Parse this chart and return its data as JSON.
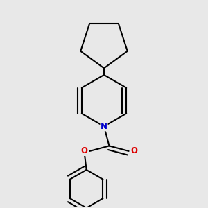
{
  "background_color": "#e8e8e8",
  "bond_color": "#000000",
  "N_color": "#0000cc",
  "O_color": "#dd0000",
  "line_width": 1.5,
  "dbo": 0.018,
  "figsize": [
    3.0,
    3.0
  ],
  "dpi": 100,
  "xlim": [
    0.15,
    0.85
  ],
  "ylim": [
    0.05,
    0.97
  ]
}
